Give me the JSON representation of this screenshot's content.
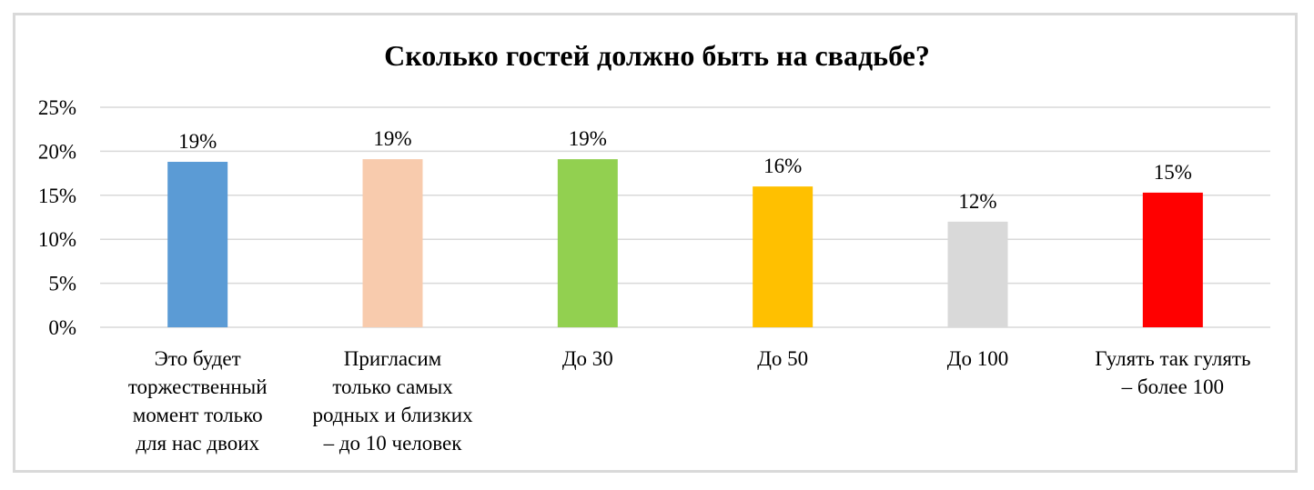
{
  "chart_data": {
    "type": "bar",
    "title": "Сколько гостей должно быть на свадьбе?",
    "xlabel": "",
    "ylabel": "",
    "ylim": [
      0,
      25
    ],
    "yticks": [
      "0%",
      "5%",
      "10%",
      "15%",
      "20%",
      "25%"
    ],
    "ytick_values": [
      0,
      5,
      10,
      15,
      20,
      25
    ],
    "grid": true,
    "legend": "none",
    "categories": [
      "Это будет торжественный момент только для нас двоих",
      "Пригласим только самых родных и близких – до 10 человек",
      "До 30",
      "До 50",
      "До 100",
      "Гулять так гулять – более 100"
    ],
    "category_lines": [
      [
        "Это будет",
        "торжественный",
        "момент только",
        "для нас двоих"
      ],
      [
        "Пригласим",
        "только самых",
        "родных и близких",
        "– до 10 человек"
      ],
      [
        "До 30"
      ],
      [
        "До 50"
      ],
      [
        "До 100"
      ],
      [
        "Гулять так гулять",
        "– более 100"
      ]
    ],
    "values": [
      18.8,
      19.1,
      19.1,
      16,
      12,
      15.3
    ],
    "labels": [
      "19%",
      "19%",
      "19%",
      "16%",
      "12%",
      "15%"
    ],
    "colors": [
      "#5b9bd5",
      "#f8cbad",
      "#92d050",
      "#ffc000",
      "#d9d9d9",
      "#ff0000"
    ]
  }
}
